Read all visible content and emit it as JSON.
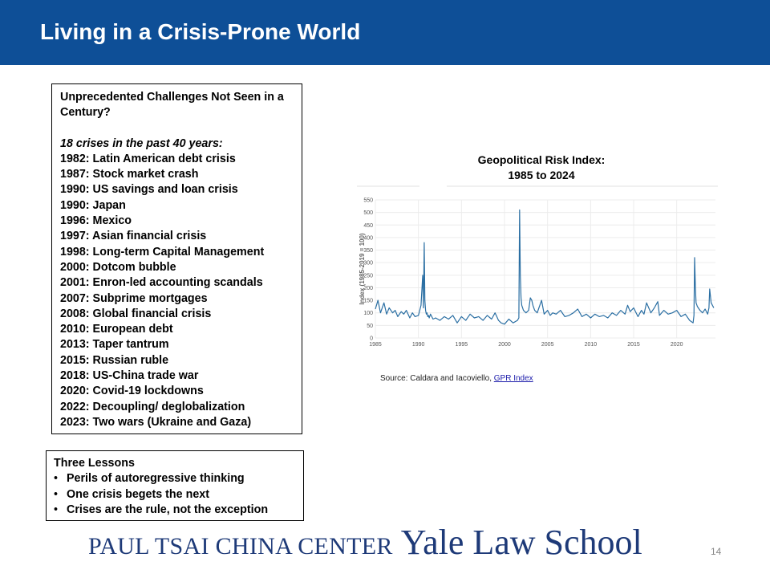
{
  "slide": {
    "title": "Living in a Crisis-Prone World",
    "page_number": "14"
  },
  "crises": {
    "heading": "Unprecedented Challenges Not Seen in a Century?",
    "subheading": "18 crises in the past 40 years:",
    "items": [
      "1982: Latin American debt crisis",
      "1987: Stock market crash",
      "1990: US savings and loan crisis",
      "1990: Japan",
      "1996: Mexico",
      "1997: Asian financial crisis",
      "1998: Long-term Capital Management",
      "2000: Dotcom bubble",
      "2001: Enron-led accounting scandals",
      "2007: Subprime mortgages",
      "2008: Global financial crisis",
      "2010: European debt",
      "2013: Taper tantrum",
      "2015: Russian ruble",
      "2018: US-China trade war",
      "2020: Covid-19 lockdowns",
      "2022: Decoupling/ deglobalization",
      "2023: Two wars (Ukraine and Gaza)"
    ]
  },
  "lessons": {
    "heading": "Three Lessons",
    "bullet": "•",
    "items": [
      "Perils of autoregressive thinking",
      "One crisis begets the next",
      "Crises are the rule, not the exception"
    ]
  },
  "source": {
    "prefix": "Source: Caldara and Iacoviello, ",
    "link_text": "GPR Index"
  },
  "footer": {
    "center_name": "PAUL TSAI CHINA CENTER",
    "school_name": "Yale Law School"
  },
  "chart_data": {
    "type": "line",
    "title_line1": "Geopolitical Risk Index:",
    "title_line2": "1985 to 2024",
    "ylabel": "Index (1985-2019 = 100)",
    "xlabel": "",
    "xlim": [
      1985,
      2024.5
    ],
    "ylim": [
      0,
      550
    ],
    "x_ticks": [
      1985,
      1990,
      1995,
      2000,
      2005,
      2010,
      2015,
      2020
    ],
    "y_ticks": [
      0,
      50,
      100,
      150,
      200,
      250,
      300,
      350,
      400,
      450,
      500,
      550
    ],
    "grid": true,
    "line_color": "#2b6fa3",
    "series": [
      {
        "x": [
          1985.0,
          1985.3,
          1985.6,
          1986.0,
          1986.3,
          1986.6,
          1987.0,
          1987.3,
          1987.6,
          1988.0,
          1988.3,
          1988.6,
          1989.0,
          1989.3,
          1989.6,
          1990.0,
          1990.3,
          1990.5,
          1990.58,
          1990.67,
          1990.75,
          1990.83,
          1990.92,
          1991.0,
          1991.08,
          1991.17,
          1991.25,
          1991.4,
          1991.7,
          1992.0,
          1992.5,
          1993.0,
          1993.5,
          1994.0,
          1994.5,
          1995.0,
          1995.5,
          1996.0,
          1996.5,
          1997.0,
          1997.5,
          1998.0,
          1998.5,
          1998.9,
          1999.1,
          1999.3,
          1999.6,
          2000.0,
          2000.5,
          2001.0,
          2001.5,
          2001.67,
          2001.75,
          2001.83,
          2001.92,
          2002.0,
          2002.2,
          2002.5,
          2002.8,
          2003.0,
          2003.17,
          2003.3,
          2003.5,
          2003.8,
          2004.0,
          2004.3,
          2004.6,
          2005.0,
          2005.3,
          2005.6,
          2006.0,
          2006.5,
          2007.0,
          2007.5,
          2008.0,
          2008.5,
          2009.0,
          2009.5,
          2010.0,
          2010.5,
          2011.0,
          2011.5,
          2012.0,
          2012.5,
          2013.0,
          2013.5,
          2014.0,
          2014.3,
          2014.6,
          2015.0,
          2015.5,
          2015.9,
          2016.2,
          2016.5,
          2017.0,
          2017.4,
          2017.8,
          2018.0,
          2018.5,
          2019.0,
          2019.5,
          2020.0,
          2020.5,
          2021.0,
          2021.5,
          2021.9,
          2022.0,
          2022.08,
          2022.17,
          2022.25,
          2022.4,
          2022.7,
          2023.0,
          2023.3,
          2023.6,
          2023.75,
          2023.83,
          2024.0,
          2024.3
        ],
        "y": [
          115,
          150,
          100,
          140,
          95,
          120,
          100,
          110,
          85,
          105,
          95,
          110,
          80,
          100,
          85,
          90,
          130,
          250,
          120,
          380,
          150,
          110,
          95,
          100,
          85,
          90,
          80,
          95,
          75,
          80,
          70,
          85,
          75,
          90,
          60,
          85,
          70,
          95,
          80,
          85,
          70,
          90,
          75,
          100,
          85,
          70,
          60,
          55,
          75,
          60,
          70,
          80,
          510,
          250,
          160,
          130,
          110,
          100,
          110,
          160,
          150,
          130,
          110,
          100,
          120,
          150,
          95,
          110,
          90,
          100,
          95,
          110,
          85,
          90,
          100,
          115,
          85,
          95,
          80,
          95,
          85,
          90,
          80,
          100,
          90,
          110,
          95,
          130,
          105,
          120,
          85,
          110,
          95,
          140,
          100,
          120,
          145,
          90,
          110,
          95,
          100,
          110,
          85,
          95,
          70,
          60,
          90,
          320,
          200,
          140,
          125,
          110,
          100,
          115,
          95,
          120,
          195,
          140,
          120
        ]
      }
    ]
  }
}
